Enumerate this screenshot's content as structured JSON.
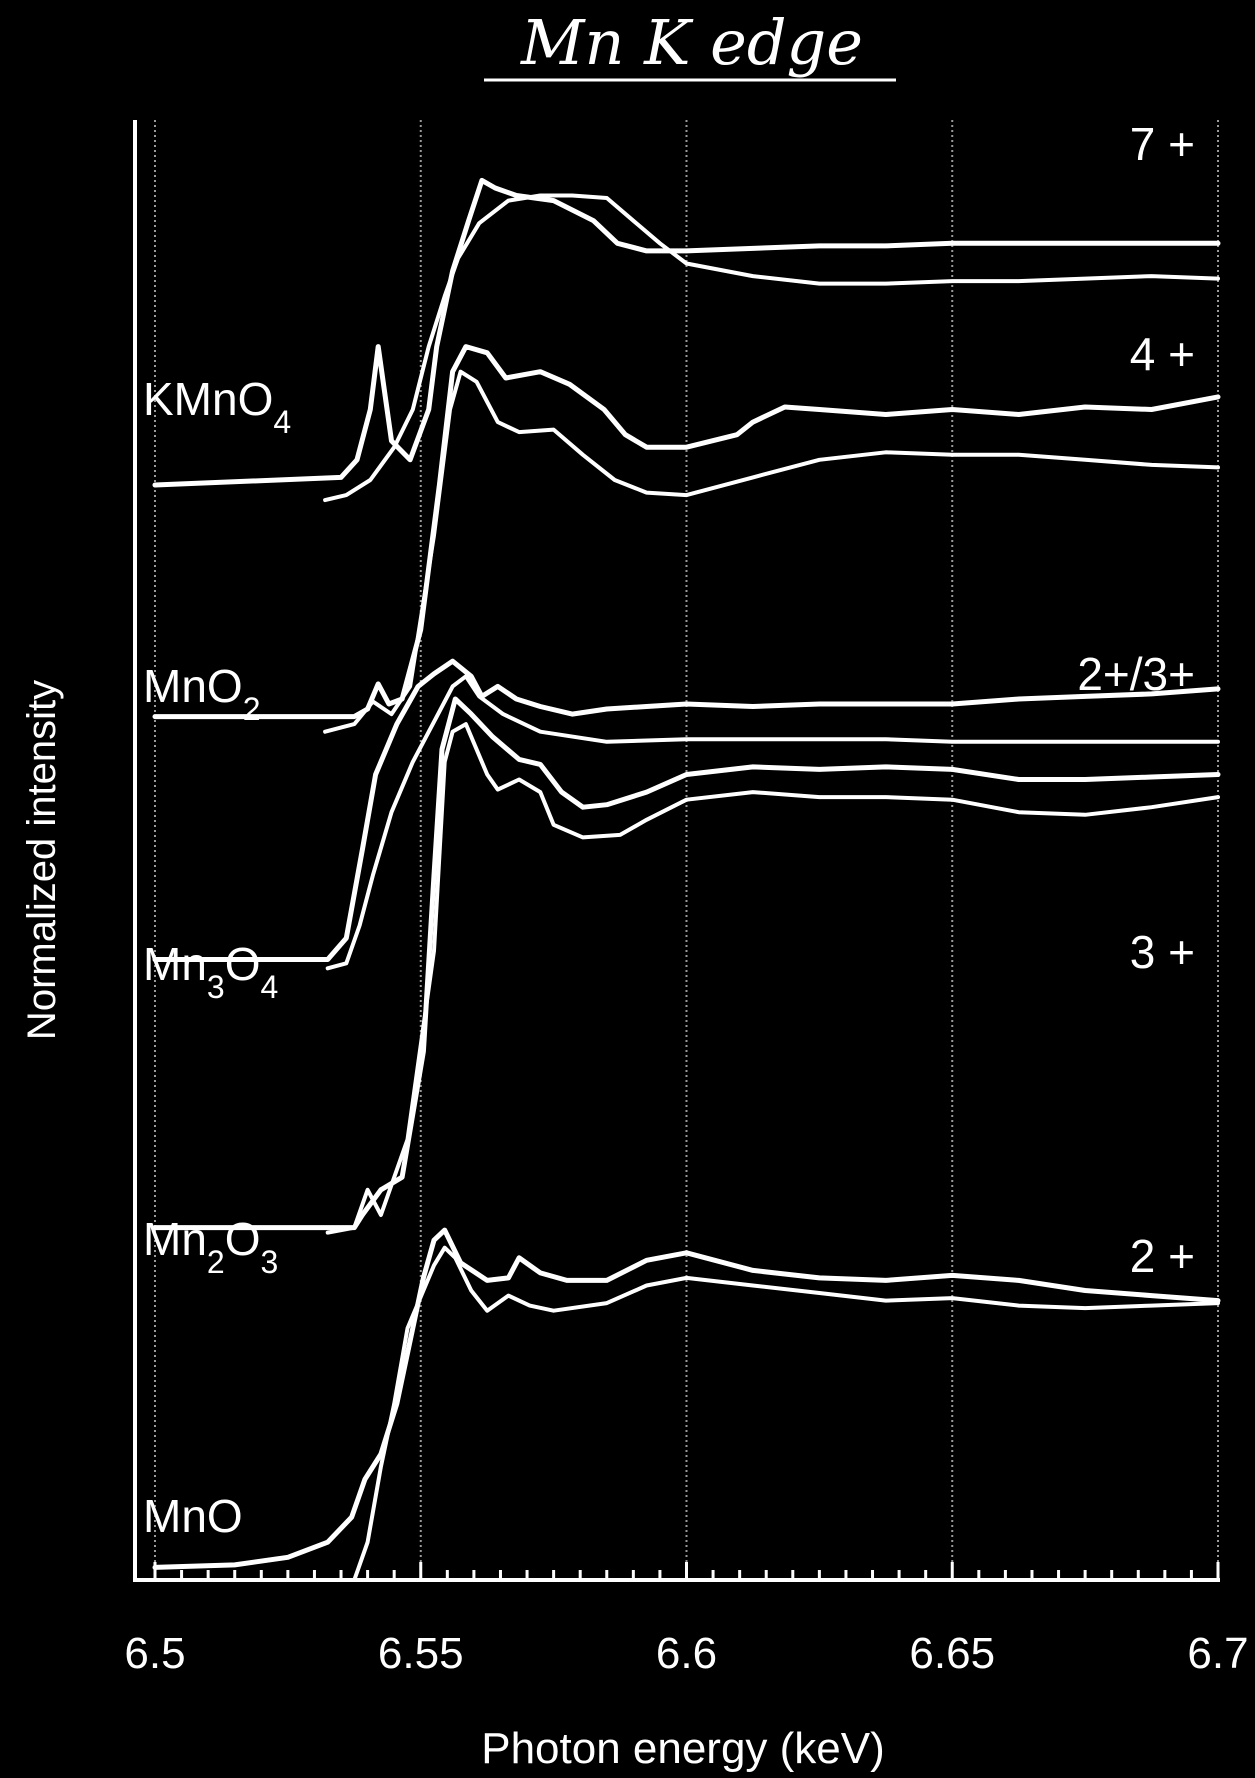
{
  "chart_data": {
    "type": "line",
    "title": "Mn K edge",
    "xlabel": "Photon energy (keV)",
    "ylabel": "Normalized intensity",
    "xlim": [
      6.5,
      6.7
    ],
    "ylim": [
      0,
      11.6
    ],
    "x_ticks": [
      "6.5",
      "6.55",
      "6.6",
      "6.65",
      "6.7"
    ],
    "x_tick_values": [
      6.5,
      6.55,
      6.6,
      6.65,
      6.7
    ],
    "grid": "vertical dotted lines at 6.5, 6.55, 6.6, 6.65, 6.7",
    "line_color": "#ffffff",
    "background_color": "#000000",
    "reference_labels": [
      {
        "text": "KMnO",
        "sub": "4",
        "sub2": "",
        "tail": ""
      },
      {
        "text": "MnO",
        "sub": "2",
        "sub2": "",
        "tail": ""
      },
      {
        "text": "Mn",
        "sub": "3",
        "sub2": "4",
        "tail": "O"
      },
      {
        "text": "Mn",
        "sub": "2",
        "sub2": "3",
        "tail": "O"
      },
      {
        "text": "MnO",
        "sub": "",
        "sub2": "",
        "tail": ""
      }
    ],
    "oxidation_labels": [
      "7 +",
      "4 +",
      "2+/3+",
      "3 +",
      "2 +"
    ],
    "series": [
      {
        "label_ref": "KMnO4",
        "role": "reference",
        "x": [
          6.5,
          6.535,
          6.538,
          6.5405,
          6.542,
          6.5445,
          6.548,
          6.5515,
          6.553,
          6.556,
          6.559,
          6.5615,
          6.564,
          6.568,
          6.575,
          6.5825,
          6.587,
          6.5925,
          6.6,
          6.6125,
          6.625,
          6.6375,
          6.65,
          6.6625,
          6.675,
          6.6875,
          6.7
        ],
        "y": [
          8.7,
          8.76,
          8.9,
          9.3,
          9.8,
          9.05,
          8.9,
          9.3,
          9.8,
          10.4,
          10.8,
          11.12,
          11.06,
          11.0,
          10.96,
          10.8,
          10.62,
          10.56,
          10.56,
          10.58,
          10.6,
          10.6,
          10.62,
          10.62,
          10.62,
          10.62,
          10.62
        ]
      },
      {
        "label_ref": "KMnO4",
        "role": "sample",
        "x": [
          6.532,
          6.536,
          6.5405,
          6.545,
          6.5485,
          6.5515,
          6.5545,
          6.557,
          6.561,
          6.5665,
          6.5725,
          6.5785,
          6.585,
          6.59,
          6.595,
          6.6,
          6.6125,
          6.625,
          6.6375,
          6.65,
          6.6625,
          6.675,
          6.6875,
          6.7
        ],
        "y": [
          8.58,
          8.62,
          8.74,
          9.0,
          9.3,
          9.8,
          10.2,
          10.5,
          10.78,
          10.96,
          11.0,
          11.0,
          10.98,
          10.8,
          10.62,
          10.46,
          10.36,
          10.3,
          10.3,
          10.32,
          10.32,
          10.34,
          10.36,
          10.34
        ]
      },
      {
        "label_ref": "MnO2",
        "role": "reference",
        "x": [
          6.5,
          6.5375,
          6.54,
          6.542,
          6.544,
          6.5465,
          6.55,
          6.5535,
          6.556,
          6.5585,
          6.5625,
          6.566,
          6.5725,
          6.578,
          6.5845,
          6.5885,
          6.5925,
          6.6,
          6.6095,
          6.6125,
          6.6185,
          6.625,
          6.6375,
          6.65,
          6.6625,
          6.675,
          6.6875,
          6.7
        ],
        "y": [
          6.86,
          6.86,
          6.92,
          7.12,
          6.96,
          7.0,
          7.55,
          8.7,
          9.6,
          9.8,
          9.75,
          9.55,
          9.6,
          9.5,
          9.3,
          9.1,
          9.0,
          9.0,
          9.1,
          9.2,
          9.32,
          9.3,
          9.26,
          9.3,
          9.26,
          9.32,
          9.3,
          9.4
        ]
      },
      {
        "label_ref": "MnO2",
        "role": "sample",
        "x": [
          6.532,
          6.5375,
          6.541,
          6.5445,
          6.548,
          6.5525,
          6.5555,
          6.5575,
          6.5605,
          6.5645,
          6.5685,
          6.575,
          6.5805,
          6.5865,
          6.5925,
          6.6,
          6.6125,
          6.625,
          6.6375,
          6.65,
          6.6625,
          6.675,
          6.6875,
          6.7
        ],
        "y": [
          6.74,
          6.8,
          6.98,
          6.88,
          7.1,
          8.3,
          9.3,
          9.6,
          9.52,
          9.2,
          9.12,
          9.14,
          8.94,
          8.74,
          8.64,
          8.62,
          8.76,
          8.9,
          8.96,
          8.94,
          8.94,
          8.9,
          8.86,
          8.84
        ]
      },
      {
        "label_ref": "Mn3O4",
        "role": "reference",
        "x": [
          6.5,
          6.5325,
          6.536,
          6.539,
          6.5415,
          6.5455,
          6.5495,
          6.5525,
          6.556,
          6.5595,
          6.5615,
          6.5645,
          6.568,
          6.5725,
          6.5785,
          6.585,
          6.5925,
          6.6,
          6.6125,
          6.625,
          6.6375,
          6.65,
          6.6625,
          6.675,
          6.6875,
          6.7
        ],
        "y": [
          4.93,
          4.93,
          5.1,
          5.8,
          6.4,
          6.8,
          7.1,
          7.2,
          7.3,
          7.18,
          7.02,
          7.1,
          7.0,
          6.94,
          6.88,
          6.92,
          6.94,
          6.96,
          6.94,
          6.96,
          6.96,
          6.96,
          7.0,
          7.02,
          7.04,
          7.08
        ]
      },
      {
        "label_ref": "Mn3O4",
        "role": "sample",
        "x": [
          6.5325,
          6.536,
          6.5385,
          6.541,
          6.5445,
          6.5485,
          6.5535,
          6.556,
          6.5585,
          6.561,
          6.5655,
          6.5725,
          6.585,
          6.6,
          6.6125,
          6.625,
          6.6375,
          6.65,
          6.6625,
          6.675,
          6.6875,
          6.7
        ],
        "y": [
          4.86,
          4.9,
          5.2,
          5.6,
          6.1,
          6.5,
          6.9,
          7.1,
          7.18,
          7.02,
          6.88,
          6.74,
          6.66,
          6.68,
          6.68,
          6.68,
          6.68,
          6.66,
          6.66,
          6.66,
          6.66,
          6.66
        ]
      },
      {
        "label_ref": "Mn2O3",
        "role": "reference",
        "x": [
          6.5,
          6.5375,
          6.539,
          6.5425,
          6.5465,
          6.5505,
          6.5525,
          6.554,
          6.5565,
          6.5595,
          6.5635,
          6.5685,
          6.5725,
          6.5765,
          6.5805,
          6.585,
          6.5925,
          6.6,
          6.6125,
          6.625,
          6.6375,
          6.65,
          6.6625,
          6.675,
          6.6875,
          6.7
        ],
        "y": [
          2.8,
          2.8,
          2.9,
          3.1,
          3.2,
          4.2,
          5.6,
          6.6,
          7.0,
          6.88,
          6.7,
          6.52,
          6.48,
          6.26,
          6.14,
          6.16,
          6.26,
          6.4,
          6.46,
          6.44,
          6.46,
          6.44,
          6.36,
          6.36,
          6.38,
          6.4
        ]
      },
      {
        "label_ref": "Mn2O3",
        "role": "sample",
        "x": [
          6.5325,
          6.5375,
          6.54,
          6.5425,
          6.5475,
          6.5525,
          6.5545,
          6.556,
          6.5585,
          6.5625,
          6.5645,
          6.5685,
          6.5725,
          6.575,
          6.5805,
          6.5875,
          6.5925,
          6.6,
          6.6125,
          6.625,
          6.6375,
          6.65,
          6.6625,
          6.675,
          6.6875,
          6.7
        ],
        "y": [
          2.76,
          2.8,
          3.1,
          2.9,
          3.5,
          5.0,
          6.5,
          6.74,
          6.8,
          6.4,
          6.28,
          6.36,
          6.26,
          6.0,
          5.9,
          5.92,
          6.04,
          6.2,
          6.26,
          6.22,
          6.22,
          6.2,
          6.1,
          6.08,
          6.14,
          6.22
        ]
      },
      {
        "label_ref": "MnO",
        "role": "reference",
        "x": [
          6.5,
          6.515,
          6.525,
          6.5325,
          6.537,
          6.5395,
          6.5425,
          6.5455,
          6.5505,
          6.5525,
          6.5545,
          6.5575,
          6.5625,
          6.5665,
          6.5685,
          6.5725,
          6.5775,
          6.585,
          6.5925,
          6.6,
          6.6125,
          6.625,
          6.6375,
          6.65,
          6.6625,
          6.675,
          6.6875,
          6.7
        ],
        "y": [
          0.1,
          0.12,
          0.18,
          0.3,
          0.5,
          0.8,
          1.0,
          1.4,
          2.4,
          2.7,
          2.78,
          2.52,
          2.38,
          2.4,
          2.56,
          2.44,
          2.38,
          2.38,
          2.54,
          2.6,
          2.46,
          2.4,
          2.38,
          2.42,
          2.38,
          2.3,
          2.26,
          2.22
        ]
      },
      {
        "label_ref": "MnO",
        "role": "sample",
        "x": [
          6.5375,
          6.54,
          6.5425,
          6.545,
          6.5475,
          6.5505,
          6.5525,
          6.5545,
          6.5565,
          6.5595,
          6.5625,
          6.5665,
          6.5705,
          6.575,
          6.585,
          6.5925,
          6.6,
          6.6125,
          6.625,
          6.6375,
          6.65,
          6.6625,
          6.675,
          6.6875,
          6.7
        ],
        "y": [
          0.0,
          0.3,
          0.9,
          1.4,
          2.0,
          2.3,
          2.5,
          2.64,
          2.56,
          2.3,
          2.14,
          2.26,
          2.18,
          2.14,
          2.2,
          2.34,
          2.4,
          2.34,
          2.28,
          2.22,
          2.24,
          2.18,
          2.16,
          2.18,
          2.2
        ]
      }
    ]
  }
}
